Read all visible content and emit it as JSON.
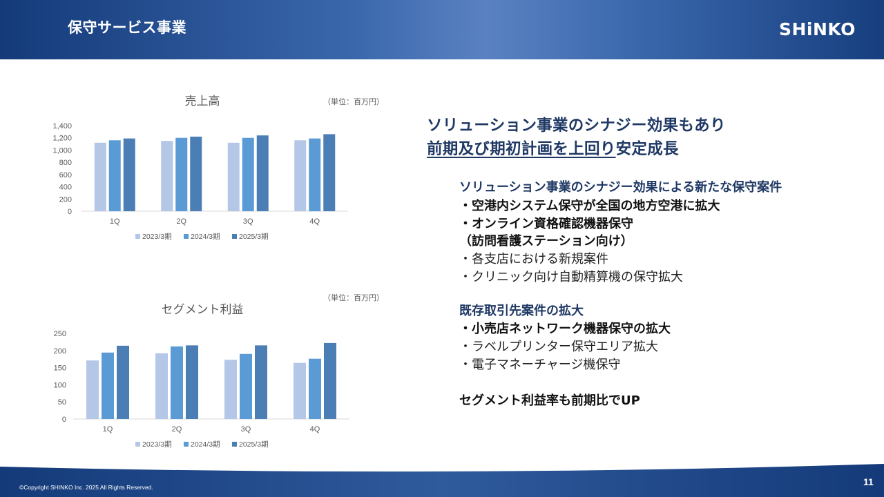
{
  "header": {
    "title": "保守サービス事業",
    "logo_text": "SHiNKO"
  },
  "colors": {
    "series": [
      "#b4c7e7",
      "#5b9bd5",
      "#4a7eb5"
    ],
    "header_dark": "#143a79",
    "headline": "#1f3864"
  },
  "chart_data": [
    {
      "type": "bar",
      "title": "売上高",
      "unit_note": "（単位：百万円）",
      "categories": [
        "1Q",
        "2Q",
        "3Q",
        "4Q"
      ],
      "series": [
        {
          "name": "2023/3期",
          "values": [
            1120,
            1150,
            1120,
            1160
          ]
        },
        {
          "name": "2024/3期",
          "values": [
            1160,
            1200,
            1200,
            1190
          ]
        },
        {
          "name": "2025/3期",
          "values": [
            1190,
            1220,
            1240,
            1260
          ]
        }
      ],
      "ylim": [
        0,
        1400
      ],
      "yticks": [
        "1,400",
        "1,200",
        "1,000",
        "800",
        "600",
        "400",
        "200",
        "0"
      ],
      "legend_position": "bottom"
    },
    {
      "type": "bar",
      "title": "セグメント利益",
      "unit_note": "（単位：百万円）",
      "categories": [
        "1Q",
        "2Q",
        "3Q",
        "4Q"
      ],
      "series": [
        {
          "name": "2023/3期",
          "values": [
            171,
            192,
            173,
            164
          ]
        },
        {
          "name": "2024/3期",
          "values": [
            194,
            212,
            190,
            176
          ]
        },
        {
          "name": "2025/3期",
          "values": [
            214,
            215,
            215,
            222
          ]
        }
      ],
      "ylim": [
        0,
        250
      ],
      "yticks": [
        "250",
        "200",
        "150",
        "100",
        "50",
        "0"
      ],
      "legend_position": "bottom"
    }
  ],
  "main": {
    "headline_1": "ソリューション事業のシナジー効果もあり",
    "headline_2a": "前期及び期初計画を上回り",
    "headline_2b": "安定成長",
    "section1_title": "ソリューション事業のシナジー効果による新たな保守案件",
    "section1_items": [
      "・空港内システム保守が全国の地方空港に拡大",
      "・オンライン資格確認機器保守",
      "（訪問看護ステーション向け）",
      "・各支店における新規案件",
      "・クリニック向け自動精算機の保守拡大"
    ],
    "section2_title": "既存取引先案件の拡大",
    "section2_items": [
      "・小売店ネットワーク機器保守の拡大",
      "・ラベルプリンター保守エリア拡大",
      "・電子マネーチャージ機保守"
    ],
    "closing": "セグメント利益率も前期比でUP"
  },
  "footer": {
    "copyright": "©Copyright SHINKO Inc. 2025 All Rights Reserved.",
    "page_number": "11"
  }
}
